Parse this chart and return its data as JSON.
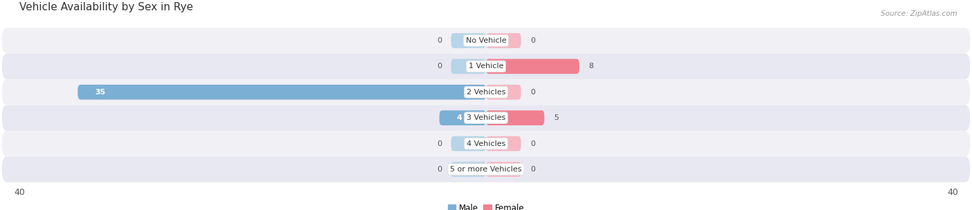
{
  "title": "Vehicle Availability by Sex in Rye",
  "source": "Source: ZipAtlas.com",
  "categories": [
    "No Vehicle",
    "1 Vehicle",
    "2 Vehicles",
    "3 Vehicles",
    "4 Vehicles",
    "5 or more Vehicles"
  ],
  "male_values": [
    0,
    0,
    35,
    4,
    0,
    0
  ],
  "female_values": [
    0,
    8,
    0,
    5,
    0,
    0
  ],
  "male_color": "#7bafd4",
  "female_color": "#f08090",
  "male_stub_color": "#b8d4e8",
  "female_stub_color": "#f5b8c4",
  "male_label": "Male",
  "female_label": "Female",
  "xlim": 40,
  "bar_height": 0.58,
  "row_colors": [
    "#f0f0f5",
    "#e8e8f2"
  ],
  "label_bg_color": "#ffffff",
  "title_fontsize": 11,
  "value_fontsize": 8,
  "cat_fontsize": 8,
  "min_stub": 3
}
